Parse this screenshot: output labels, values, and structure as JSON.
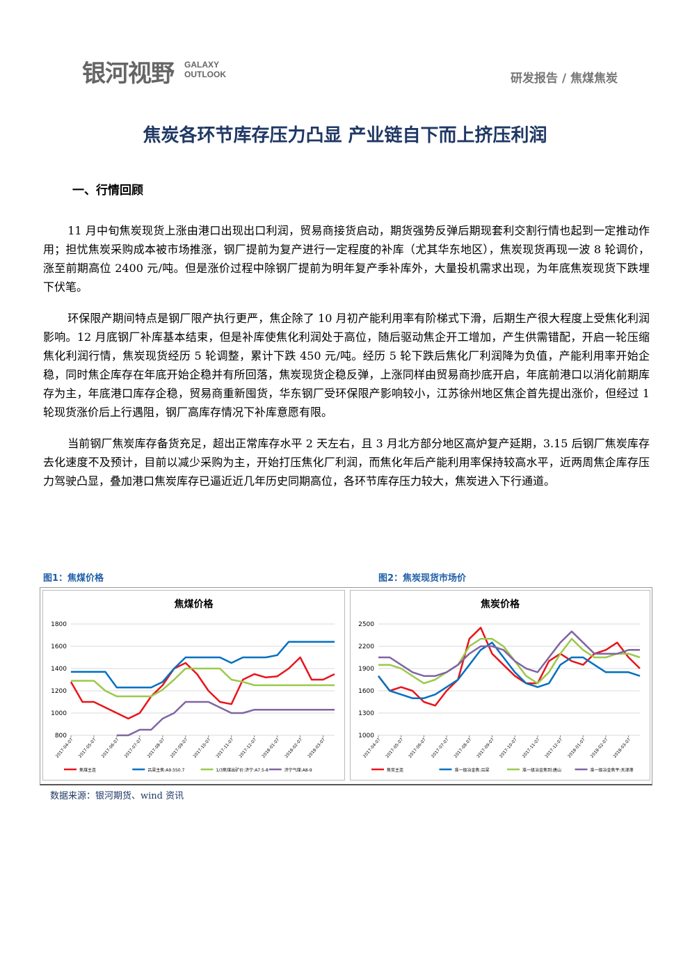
{
  "header": {
    "logo": "银河视野",
    "logo_en_1": "GALAXY",
    "logo_en_2": "OUTLOOK",
    "category": "研发报告 / 焦煤焦炭"
  },
  "title": "焦炭各环节库存压力凸显 产业链自下而上挤压利润",
  "section": "一、行情回顾",
  "paragraphs": [
    "11 月中旬焦炭现货上涨由港口出现出口利润，贸易商接货启动，期货强势反弹后期现套利交割行情也起到一定推动作用；担忧焦炭采购成本被市场推涨，钢厂提前为复产进行一定程度的补库（尤其华东地区），焦炭现货再现一波 8 轮调价，涨至前期高位 2400 元/吨。但是涨价过程中除钢厂提前为明年复产季补库外，大量投机需求出现，为年底焦炭现货下跌埋下伏笔。",
    "环保限产期间特点是钢厂限产执行更严，焦企除了 10 月初产能利用率有阶梯式下滑，后期生产很大程度上受焦化利润影响。12 月底钢厂补库基本结束，但是补库使焦化利润处于高位，随后驱动焦企开工增加，产生供需错配，开启一轮压缩焦化利润行情，焦炭现货经历 5 轮调整，累计下跌 450 元/吨。经历 5 轮下跌后焦化厂利润降为负值，产能利用率开始企稳，同时焦企库存在年底开始企稳并有所回落，焦炭现货企稳反弹，上涨同样由贸易商抄底开启，年底前港口以消化前期库存为主，年底港口库存企稳，贸易商重新囤货，华东钢厂受环保限产影响较小，江苏徐州地区焦企首先提出涨价，但经过 1 轮现货涨价后上行遇阻，钢厂高库存情况下补库意愿有限。",
    "当前钢厂焦炭库存备货充足，超出正常库存水平 2 天左右，且 3 月北方部分地区高炉复产延期，3.15 后钢厂焦炭库存去化速度不及预计，目前以减少采购为主，开始打压焦化厂利润，而焦化年后产能利用率保持较高水平，近两周焦企库存压力驾驶凸显，叠加港口焦炭库存已逼近近几年历史同期高位，各环节库存压力较大，焦炭进入下行通道。"
  ],
  "figure_captions": [
    "图1：焦煤价格",
    "图2：焦炭现货市场价"
  ],
  "chart_data": [
    {
      "type": "line",
      "title": "焦煤价格",
      "x": [
        "2017-04-07",
        null,
        "2017-05-07",
        null,
        "2017-06-07",
        null,
        "2017-07-07",
        null,
        "2017-08-07",
        null,
        "2017-09-07",
        null,
        "2017-10-07",
        null,
        "2017-11-07",
        null,
        "2017-12-07",
        null,
        "2018-01-07",
        null,
        "2018-02-07",
        null,
        "2018-03-07",
        null
      ],
      "ylim": [
        800,
        1800
      ],
      "yticks": [
        800,
        1000,
        1200,
        1400,
        1600,
        1800
      ],
      "series": [
        {
          "name": "焦煤主连",
          "color": "#e8141b",
          "values": [
            1280,
            1100,
            1100,
            1050,
            1000,
            950,
            1000,
            1150,
            1250,
            1400,
            1450,
            1350,
            1200,
            1100,
            1080,
            1300,
            1350,
            1320,
            1330,
            1400,
            1500,
            1300,
            1300,
            1350
          ]
        },
        {
          "name": "吕梁主焦:A9.5S0.7",
          "color": "#0070c0",
          "values": [
            1370,
            1370,
            1370,
            1370,
            1230,
            1230,
            1230,
            1230,
            1280,
            1400,
            1500,
            1500,
            1500,
            1500,
            1450,
            1500,
            1500,
            1500,
            1520,
            1640,
            1640,
            1640,
            1640,
            1640
          ]
        },
        {
          "name": "1/3焦煤出矿价:济宁:A7.5-8",
          "color": "#9bc94b",
          "values": [
            1290,
            1290,
            1290,
            1200,
            1150,
            1150,
            1150,
            1150,
            1210,
            1300,
            1400,
            1400,
            1400,
            1400,
            1300,
            1280,
            1250,
            1250,
            1250,
            1250,
            1250,
            1250,
            1250,
            1250
          ]
        },
        {
          "name": "济宁气煤:A8-9",
          "color": "#8064a2",
          "values": [
            null,
            null,
            null,
            null,
            800,
            800,
            850,
            850,
            950,
            1000,
            1100,
            1100,
            1100,
            1050,
            1000,
            1000,
            1030,
            1030,
            1030,
            1030,
            1030,
            1030,
            1030,
            1030
          ]
        }
      ]
    },
    {
      "type": "line",
      "title": "焦炭价格",
      "x": [
        "2017-04-07",
        null,
        "2017-05-07",
        null,
        "2017-06-07",
        null,
        "2017-07-07",
        null,
        "2017-08-07",
        null,
        "2017-09-07",
        null,
        "2017-10-07",
        null,
        "2017-11-07",
        null,
        "2017-12-07",
        null,
        "2018-01-07",
        null,
        "2018-02-07",
        null,
        "2018-03-07",
        null
      ],
      "ylim": [
        1000,
        2500
      ],
      "yticks": [
        1000,
        1300,
        1600,
        1900,
        2200,
        2500
      ],
      "series": [
        {
          "name": "焦炭主连",
          "color": "#e8141b",
          "values": [
            1800,
            1600,
            1650,
            1600,
            1450,
            1400,
            1600,
            1750,
            2300,
            2450,
            2100,
            1950,
            1800,
            1700,
            1700,
            2000,
            2100,
            2000,
            1950,
            2100,
            2150,
            2250,
            2050,
            1900
          ]
        },
        {
          "name": "准一级冶金焦:吕梁",
          "color": "#0070c0",
          "values": [
            1800,
            1600,
            1550,
            1500,
            1500,
            1550,
            1650,
            1750,
            1950,
            2150,
            2250,
            2050,
            1850,
            1700,
            1650,
            1700,
            1950,
            2050,
            2050,
            1950,
            1850,
            1850,
            1850,
            1800
          ]
        },
        {
          "name": "准一级冶金焦到:唐山",
          "color": "#9bc94b",
          "values": [
            1950,
            1950,
            1900,
            1800,
            1700,
            1750,
            1850,
            1950,
            2200,
            2300,
            2300,
            2200,
            2000,
            1800,
            1700,
            1850,
            2100,
            2300,
            2150,
            2050,
            2050,
            2100,
            2100,
            2050
          ]
        },
        {
          "name": "准一级冶金焦平:天津港",
          "color": "#8064a2",
          "values": [
            2050,
            2050,
            1950,
            1850,
            1800,
            1800,
            1850,
            1950,
            2100,
            2200,
            2200,
            2150,
            2000,
            1900,
            1850,
            2050,
            2250,
            2400,
            2250,
            2100,
            2100,
            2100,
            2150,
            2150
          ]
        }
      ]
    }
  ],
  "source": "数据来源：银河期货、wind 资讯"
}
